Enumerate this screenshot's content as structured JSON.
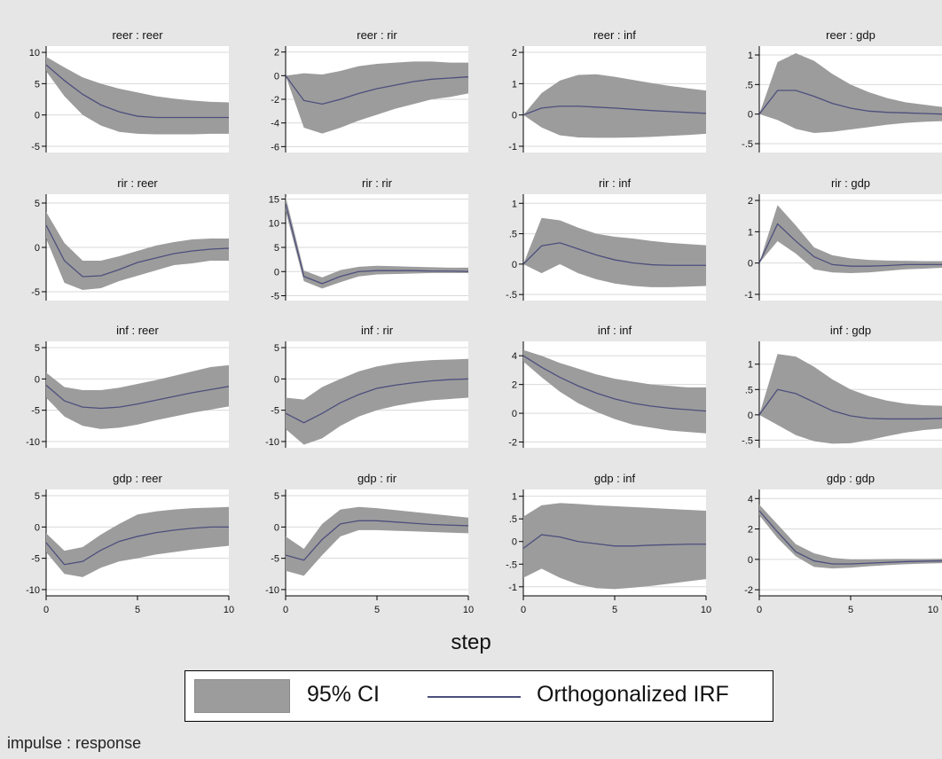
{
  "chart_data": {
    "type": "area",
    "note": "impulse : response",
    "xlabel": "step",
    "x": [
      0,
      1,
      2,
      3,
      4,
      5,
      6,
      7,
      8,
      9,
      10
    ],
    "x_ticks": [
      0,
      5,
      10
    ],
    "legend": {
      "ci_label": "95% CI",
      "irf_label": "Orthogonalized IRF",
      "placement": "bottom-center"
    },
    "colors": {
      "band": "#9c9c9c",
      "line": "#4d4f7d",
      "plot_bg": "#ffffff",
      "page_bg": "#e6e6e6",
      "grid": "#d9d9d9"
    },
    "panels": [
      {
        "title": "reer : reer",
        "ylim": [
          -6,
          11
        ],
        "yticks": [
          {
            "v": 10,
            "label": "10"
          },
          {
            "v": 5,
            "label": "5"
          },
          {
            "v": 0,
            "label": "0"
          },
          {
            "v": -5,
            "label": "-5"
          }
        ],
        "irf": [
          8,
          5.5,
          3.3,
          1.6,
          0.5,
          -0.2,
          -0.4,
          -0.4,
          -0.4,
          -0.4,
          -0.4
        ],
        "lower": [
          7,
          3,
          0,
          -1.7,
          -2.7,
          -3,
          -3.1,
          -3.1,
          -3.1,
          -3,
          -3
        ],
        "upper": [
          9.3,
          7.6,
          6,
          5,
          4.2,
          3.6,
          3,
          2.6,
          2.3,
          2.1,
          2
        ]
      },
      {
        "title": "reer : rir",
        "ylim": [
          -6.5,
          2.5
        ],
        "yticks": [
          {
            "v": 2,
            "label": "2"
          },
          {
            "v": 0,
            "label": "0"
          },
          {
            "v": -2,
            "label": "-2"
          },
          {
            "v": -4,
            "label": "-4"
          },
          {
            "v": -6,
            "label": "-6"
          }
        ],
        "irf": [
          0,
          -2.1,
          -2.4,
          -2,
          -1.5,
          -1.1,
          -0.8,
          -0.5,
          -0.3,
          -0.2,
          -0.1
        ],
        "lower": [
          0,
          -4.4,
          -4.9,
          -4.4,
          -3.8,
          -3.3,
          -2.8,
          -2.4,
          -2,
          -1.8,
          -1.5
        ],
        "upper": [
          0,
          0.2,
          0.1,
          0.4,
          0.8,
          1,
          1.1,
          1.2,
          1.2,
          1.1,
          1.1
        ]
      },
      {
        "title": "reer : inf",
        "ylim": [
          -1.2,
          2.2
        ],
        "yticks": [
          {
            "v": 2,
            "label": "2"
          },
          {
            "v": 1,
            "label": "1"
          },
          {
            "v": 0,
            "label": "0"
          },
          {
            "v": -1,
            "label": "-1"
          }
        ],
        "irf": [
          0,
          0.22,
          0.28,
          0.28,
          0.25,
          0.22,
          0.18,
          0.14,
          0.11,
          0.08,
          0.05
        ],
        "lower": [
          0,
          -0.4,
          -0.65,
          -0.72,
          -0.73,
          -0.73,
          -0.72,
          -0.7,
          -0.67,
          -0.64,
          -0.6
        ],
        "upper": [
          0,
          0.7,
          1.1,
          1.28,
          1.3,
          1.22,
          1.12,
          1.02,
          0.93,
          0.85,
          0.78
        ]
      },
      {
        "title": "reer : gdp",
        "ylim": [
          -0.65,
          1.15
        ],
        "yticks": [
          {
            "v": 1,
            "label": "1"
          },
          {
            "v": 0.5,
            "label": ".5"
          },
          {
            "v": 0,
            "label": "0"
          },
          {
            "v": -0.5,
            "label": "-.5"
          }
        ],
        "irf": [
          0,
          0.4,
          0.4,
          0.3,
          0.18,
          0.1,
          0.05,
          0.03,
          0.02,
          0.01,
          0
        ],
        "lower": [
          0,
          -0.1,
          -0.25,
          -0.32,
          -0.3,
          -0.26,
          -0.22,
          -0.18,
          -0.15,
          -0.13,
          -0.12
        ],
        "upper": [
          0,
          0.88,
          1.03,
          0.9,
          0.68,
          0.5,
          0.37,
          0.27,
          0.2,
          0.16,
          0.12
        ]
      },
      {
        "title": "rir : reer",
        "ylim": [
          -6,
          6
        ],
        "yticks": [
          {
            "v": 5,
            "label": "5"
          },
          {
            "v": 0,
            "label": "0"
          },
          {
            "v": -5,
            "label": "-5"
          }
        ],
        "irf": [
          2.5,
          -1.5,
          -3.3,
          -3.2,
          -2.5,
          -1.7,
          -1.2,
          -0.7,
          -0.4,
          -0.2,
          -0.1
        ],
        "lower": [
          1,
          -4,
          -4.8,
          -4.6,
          -3.8,
          -3.2,
          -2.6,
          -2,
          -1.8,
          -1.5,
          -1.5
        ],
        "upper": [
          4,
          0.5,
          -1.5,
          -1.5,
          -1,
          -0.4,
          0.2,
          0.6,
          0.9,
          1,
          1
        ]
      },
      {
        "title": "rir : rir",
        "ylim": [
          -6,
          16
        ],
        "yticks": [
          {
            "v": 15,
            "label": "15"
          },
          {
            "v": 10,
            "label": "10"
          },
          {
            "v": 5,
            "label": "5"
          },
          {
            "v": 0,
            "label": "0"
          },
          {
            "v": -5,
            "label": "-5"
          }
        ],
        "irf": [
          14,
          -1,
          -2.5,
          -1,
          0,
          0.2,
          0.2,
          0.2,
          0.1,
          0.1,
          0
        ],
        "lower": [
          12.5,
          -2,
          -3.5,
          -2.2,
          -1,
          -0.6,
          -0.5,
          -0.4,
          -0.3,
          -0.3,
          -0.3
        ],
        "upper": [
          15.5,
          0.2,
          -1.2,
          0.3,
          1,
          1.2,
          1.1,
          1,
          0.9,
          0.8,
          0.8
        ]
      },
      {
        "title": "rir : inf",
        "ylim": [
          -0.6,
          1.15
        ],
        "yticks": [
          {
            "v": 1,
            "label": "1"
          },
          {
            "v": 0.5,
            "label": ".5"
          },
          {
            "v": 0,
            "label": "0"
          },
          {
            "v": -0.5,
            "label": "-.5"
          }
        ],
        "irf": [
          0,
          0.3,
          0.35,
          0.25,
          0.15,
          0.07,
          0.02,
          -0.01,
          -0.02,
          -0.02,
          -0.02
        ],
        "lower": [
          0,
          -0.15,
          0,
          -0.15,
          -0.25,
          -0.32,
          -0.36,
          -0.38,
          -0.38,
          -0.37,
          -0.36
        ],
        "upper": [
          0,
          0.76,
          0.72,
          0.6,
          0.5,
          0.45,
          0.42,
          0.38,
          0.35,
          0.33,
          0.31
        ]
      },
      {
        "title": "rir : gdp",
        "ylim": [
          -1.2,
          2.2
        ],
        "yticks": [
          {
            "v": 2,
            "label": "2"
          },
          {
            "v": 1,
            "label": "1"
          },
          {
            "v": 0,
            "label": "0"
          },
          {
            "v": -1,
            "label": "-1"
          }
        ],
        "irf": [
          0,
          1.25,
          0.7,
          0.2,
          -0.05,
          -0.1,
          -0.1,
          -0.08,
          -0.05,
          -0.05,
          -0.05
        ],
        "lower": [
          0,
          0.7,
          0.3,
          -0.2,
          -0.3,
          -0.32,
          -0.3,
          -0.25,
          -0.2,
          -0.18,
          -0.15
        ],
        "upper": [
          0,
          1.85,
          1.2,
          0.5,
          0.25,
          0.15,
          0.1,
          0.08,
          0.07,
          0.06,
          0.06
        ]
      },
      {
        "title": "inf : reer",
        "ylim": [
          -11,
          6
        ],
        "yticks": [
          {
            "v": 5,
            "label": "5"
          },
          {
            "v": 0,
            "label": "0"
          },
          {
            "v": -5,
            "label": "-5"
          },
          {
            "v": -10,
            "label": "-10"
          }
        ],
        "irf": [
          -1,
          -3.5,
          -4.5,
          -4.7,
          -4.5,
          -4,
          -3.4,
          -2.8,
          -2.2,
          -1.7,
          -1.2
        ],
        "lower": [
          -3,
          -6,
          -7.5,
          -8,
          -7.8,
          -7.3,
          -6.6,
          -6,
          -5.4,
          -4.9,
          -4.4
        ],
        "upper": [
          1,
          -1.3,
          -1.8,
          -1.8,
          -1.4,
          -0.8,
          -0.2,
          0.5,
          1.2,
          1.9,
          2.2
        ]
      },
      {
        "title": "inf : rir",
        "ylim": [
          -11,
          6
        ],
        "yticks": [
          {
            "v": 5,
            "label": "5"
          },
          {
            "v": 0,
            "label": "0"
          },
          {
            "v": -5,
            "label": "-5"
          },
          {
            "v": -10,
            "label": "-10"
          }
        ],
        "irf": [
          -5.5,
          -7,
          -5.5,
          -3.8,
          -2.5,
          -1.5,
          -1,
          -0.6,
          -0.3,
          -0.1,
          0
        ],
        "lower": [
          -8,
          -10.5,
          -9.5,
          -7.5,
          -6,
          -5,
          -4.3,
          -3.8,
          -3.4,
          -3.2,
          -3
        ],
        "upper": [
          -3,
          -3.3,
          -1.3,
          0,
          1.2,
          2,
          2.5,
          2.8,
          3,
          3.1,
          3.2
        ]
      },
      {
        "title": "inf : inf",
        "ylim": [
          -2.4,
          5
        ],
        "yticks": [
          {
            "v": 4,
            "label": "4"
          },
          {
            "v": 2,
            "label": "2"
          },
          {
            "v": 0,
            "label": "0"
          },
          {
            "v": -2,
            "label": "-2"
          }
        ],
        "irf": [
          4,
          3.2,
          2.5,
          1.9,
          1.4,
          1,
          0.7,
          0.5,
          0.35,
          0.25,
          0.15
        ],
        "lower": [
          3.6,
          2.5,
          1.5,
          0.7,
          0.1,
          -0.4,
          -0.8,
          -1,
          -1.2,
          -1.3,
          -1.4
        ],
        "upper": [
          4.4,
          4,
          3.5,
          3.1,
          2.7,
          2.4,
          2.2,
          2,
          1.9,
          1.8,
          1.8
        ]
      },
      {
        "title": "inf : gdp",
        "ylim": [
          -0.65,
          1.45
        ],
        "yticks": [
          {
            "v": 1,
            "label": "1"
          },
          {
            "v": 0.5,
            "label": ".5"
          },
          {
            "v": 0,
            "label": "0"
          },
          {
            "v": -0.5,
            "label": "-.5"
          }
        ],
        "irf": [
          0,
          0.5,
          0.42,
          0.25,
          0.08,
          -0.02,
          -0.07,
          -0.08,
          -0.08,
          -0.08,
          -0.07
        ],
        "lower": [
          0,
          -0.2,
          -0.4,
          -0.52,
          -0.57,
          -0.56,
          -0.5,
          -0.42,
          -0.35,
          -0.3,
          -0.27
        ],
        "upper": [
          0,
          1.2,
          1.15,
          0.95,
          0.7,
          0.5,
          0.37,
          0.28,
          0.22,
          0.19,
          0.18
        ]
      },
      {
        "title": "gdp : reer",
        "ylim": [
          -11,
          6
        ],
        "yticks": [
          {
            "v": 5,
            "label": "5"
          },
          {
            "v": 0,
            "label": "0"
          },
          {
            "v": -5,
            "label": "-5"
          },
          {
            "v": -10,
            "label": "-10"
          }
        ],
        "irf": [
          -2.5,
          -6,
          -5.5,
          -3.7,
          -2.3,
          -1.5,
          -0.9,
          -0.5,
          -0.2,
          0,
          0
        ],
        "lower": [
          -4,
          -7.5,
          -8,
          -6.5,
          -5.5,
          -5,
          -4.4,
          -4,
          -3.6,
          -3.3,
          -3
        ],
        "upper": [
          -1,
          -3.8,
          -3.2,
          -1.2,
          0.5,
          2,
          2.5,
          2.8,
          3,
          3.1,
          3.2
        ]
      },
      {
        "title": "gdp : rir",
        "ylim": [
          -11,
          6
        ],
        "yticks": [
          {
            "v": 5,
            "label": "5"
          },
          {
            "v": 0,
            "label": "0"
          },
          {
            "v": -5,
            "label": "-5"
          },
          {
            "v": -10,
            "label": "-10"
          }
        ],
        "irf": [
          -4.5,
          -5.3,
          -2,
          0.5,
          1,
          1,
          0.8,
          0.6,
          0.4,
          0.3,
          0.2
        ],
        "lower": [
          -7,
          -7.8,
          -4.5,
          -1.5,
          -0.5,
          -0.5,
          -0.6,
          -0.7,
          -0.8,
          -0.9,
          -1
        ],
        "upper": [
          -1.5,
          -3.5,
          0.5,
          2.8,
          3.2,
          3,
          2.7,
          2.4,
          2.1,
          1.8,
          1.5
        ]
      },
      {
        "title": "gdp : inf",
        "ylim": [
          -1.2,
          1.15
        ],
        "yticks": [
          {
            "v": 1,
            "label": "1"
          },
          {
            "v": 0.5,
            "label": ".5"
          },
          {
            "v": 0,
            "label": "0"
          },
          {
            "v": -0.5,
            "label": "-.5"
          },
          {
            "v": -1,
            "label": "-1"
          }
        ],
        "irf": [
          -0.15,
          0.15,
          0.1,
          0,
          -0.05,
          -0.1,
          -0.1,
          -0.08,
          -0.07,
          -0.06,
          -0.06
        ],
        "lower": [
          -0.8,
          -0.6,
          -0.8,
          -0.95,
          -1.03,
          -1.05,
          -1.02,
          -0.98,
          -0.93,
          -0.88,
          -0.83
        ],
        "upper": [
          0.55,
          0.8,
          0.85,
          0.83,
          0.8,
          0.78,
          0.76,
          0.74,
          0.72,
          0.7,
          0.68
        ]
      },
      {
        "title": "gdp : gdp",
        "ylim": [
          -2.4,
          4.6
        ],
        "yticks": [
          {
            "v": 4,
            "label": "4"
          },
          {
            "v": 2,
            "label": "2"
          },
          {
            "v": 0,
            "label": "0"
          },
          {
            "v": -2,
            "label": "-2"
          }
        ],
        "irf": [
          3.2,
          1.8,
          0.5,
          -0.1,
          -0.3,
          -0.3,
          -0.25,
          -0.2,
          -0.15,
          -0.12,
          -0.1
        ],
        "lower": [
          2.9,
          1.4,
          0.2,
          -0.5,
          -0.6,
          -0.55,
          -0.45,
          -0.38,
          -0.32,
          -0.28,
          -0.25
        ],
        "upper": [
          3.6,
          2.3,
          1,
          0.4,
          0.1,
          0,
          0,
          0.02,
          0.03,
          0.03,
          0.04
        ]
      }
    ]
  }
}
